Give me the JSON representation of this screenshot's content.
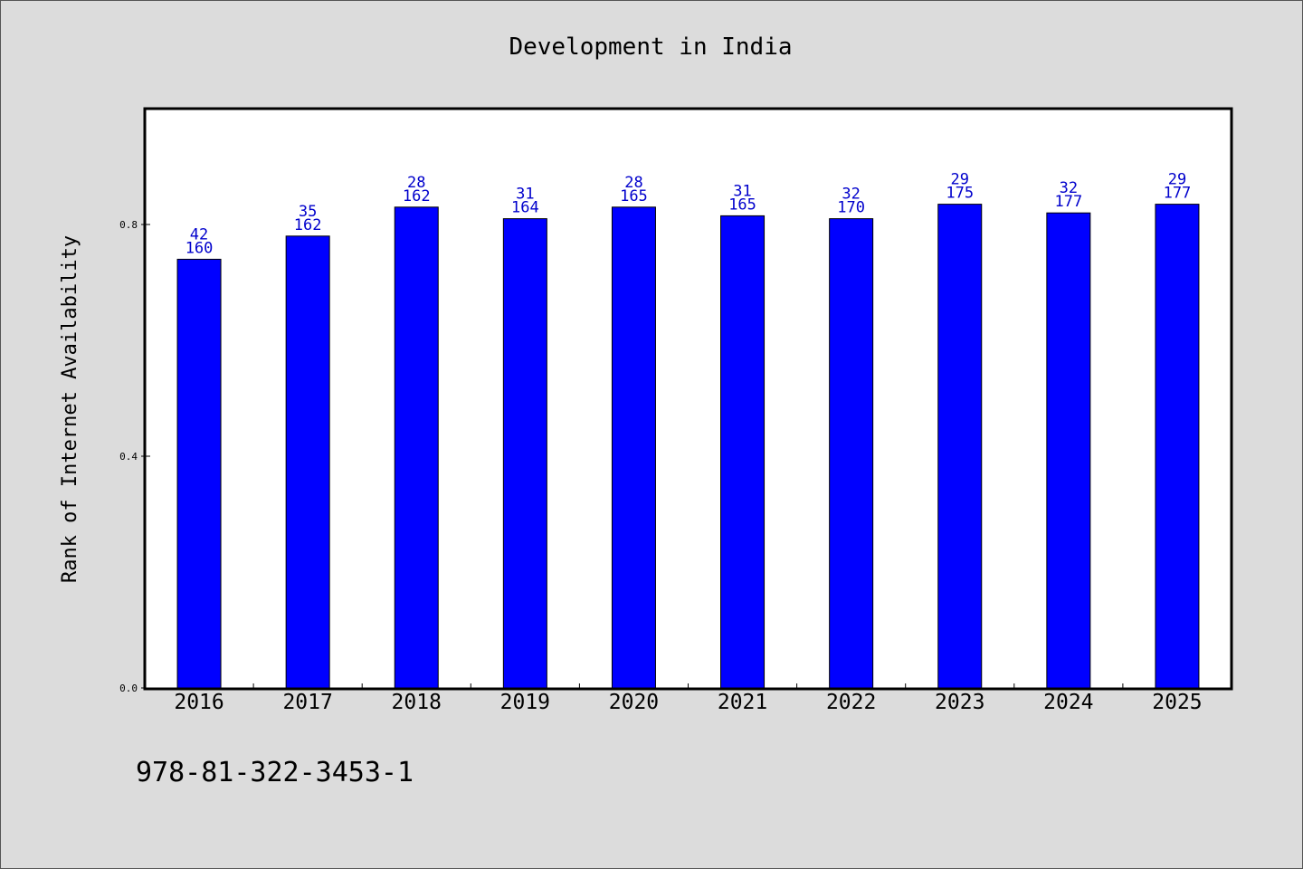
{
  "chart_data": {
    "type": "bar",
    "title": "Development in India",
    "xlabel": "",
    "ylabel": "Rank of Internet Availability",
    "categories": [
      "2016",
      "2017",
      "2018",
      "2019",
      "2020",
      "2021",
      "2022",
      "2023",
      "2024",
      "2025"
    ],
    "values": [
      0.74,
      0.78,
      0.83,
      0.81,
      0.83,
      0.815,
      0.81,
      0.835,
      0.82,
      0.835
    ],
    "bar_labels_top": [
      "42",
      "35",
      "28",
      "31",
      "28",
      "31",
      "32",
      "29",
      "32",
      "29"
    ],
    "bar_labels_bottom": [
      "160",
      "162",
      "162",
      "164",
      "165",
      "165",
      "170",
      "175",
      "177",
      "177"
    ],
    "yticks": [
      "0.0",
      "0.4",
      "0.8"
    ],
    "ylim": [
      0,
      1.0
    ],
    "grid": false,
    "bar_color": "#0000ff",
    "label_color": "#0000cc"
  },
  "footer_text": "978-81-322-3453-1"
}
